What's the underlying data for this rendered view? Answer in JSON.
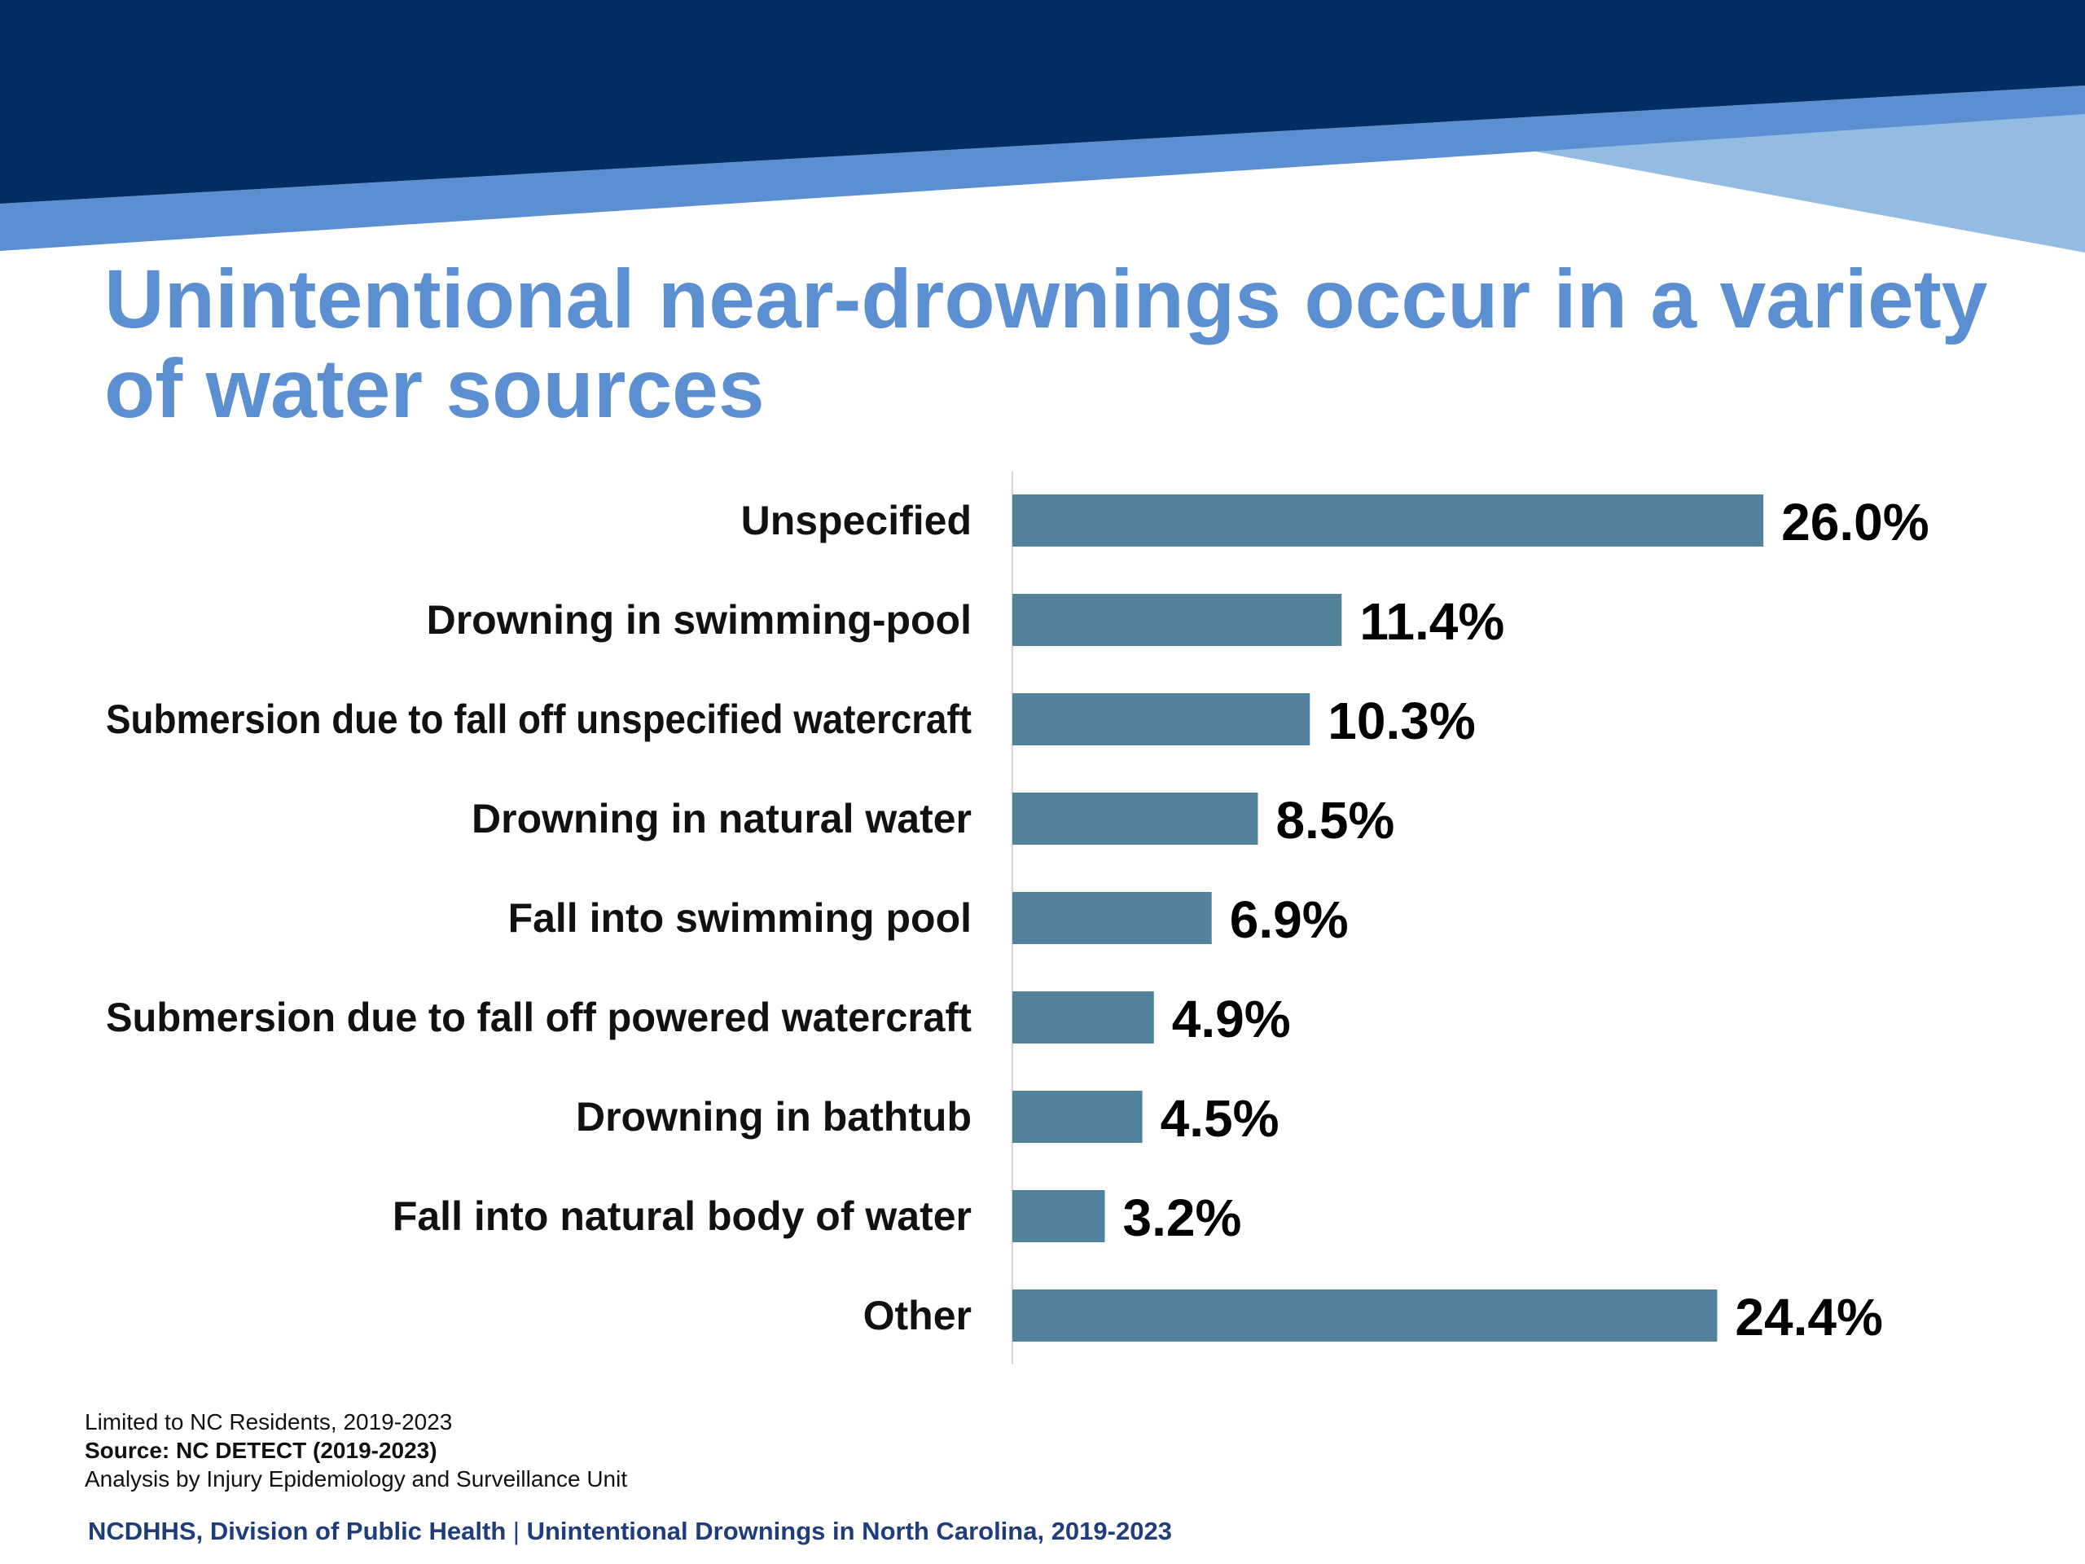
{
  "colors": {
    "navy": "#002D62",
    "mid_blue": "#5B8FD2",
    "light_blue": "#93BCE3",
    "title_blue": "#5B8FD2",
    "bar": "#53839C",
    "footer_blue": "#1F3D7A"
  },
  "slide": {
    "title": "Unintentional near-drownings occur in a variety of water sources"
  },
  "chart_data": {
    "type": "bar",
    "orientation": "horizontal",
    "categories": [
      "Unspecified",
      "Drowning in swimming-pool",
      "Submersion due to fall off unspecified watercraft",
      "Drowning in natural water",
      "Fall into swimming pool",
      "Submersion due to fall off powered watercraft",
      "Drowning in bathtub",
      "Fall into natural body of water",
      "Other"
    ],
    "values": [
      26.0,
      11.4,
      10.3,
      8.5,
      6.9,
      4.9,
      4.5,
      3.2,
      24.4
    ],
    "value_labels": [
      "26.0%",
      "11.4%",
      "10.3%",
      "8.5%",
      "6.9%",
      "4.9%",
      "4.5%",
      "3.2%",
      "24.4%"
    ],
    "unit": "%",
    "xlim": [
      0,
      30
    ],
    "grid": false,
    "legend": "none"
  },
  "notes": {
    "line1": "Limited to NC Residents, 2019-2023",
    "source": "Source: NC DETECT (2019-2023)",
    "analysis": "Analysis by Injury Epidemiology and Surveillance Unit"
  },
  "footer": {
    "left": "NCDHHS, Division of Public Health",
    "separator": "|",
    "right": "Unintentional Drownings in North Carolina, 2019-2023"
  }
}
